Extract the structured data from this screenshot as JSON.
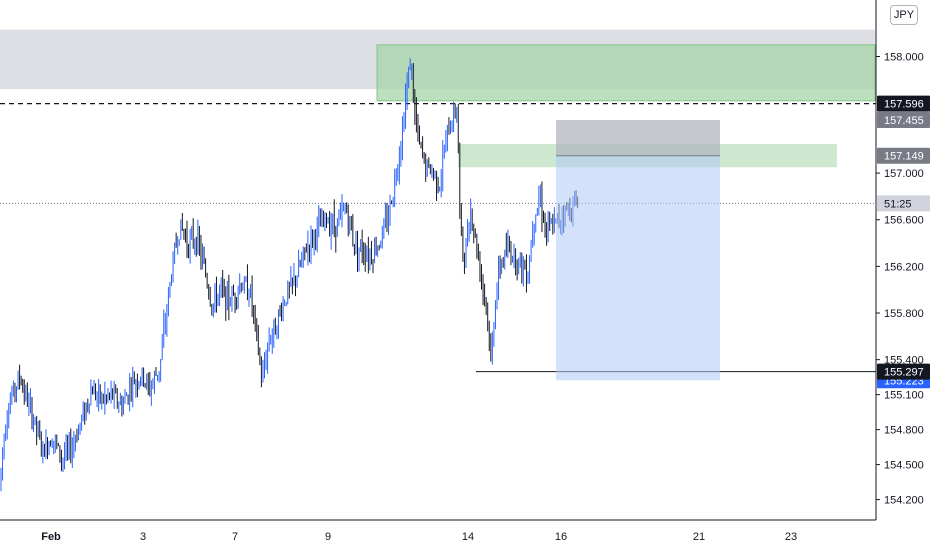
{
  "currency": "JPY",
  "chart_data": {
    "type": "candlestick",
    "title": "",
    "ylim": [
      154.05,
      158.4
    ],
    "y_ticks": [
      158.0,
      157.0,
      156.6,
      156.2,
      155.8,
      155.4,
      155.1,
      154.8,
      154.5,
      154.2
    ],
    "y_tick_labels": [
      "158.000",
      "157.000",
      "156.600",
      "156.200",
      "155.800",
      "155.400",
      "155.100",
      "154.800",
      "154.500",
      "154.200"
    ],
    "x_ticks": [
      "Feb",
      "3",
      "7",
      "9",
      "14",
      "16",
      "21",
      "23"
    ],
    "price_path": [
      [
        0,
        154.3
      ],
      [
        2,
        154.6
      ],
      [
        7,
        154.95
      ],
      [
        12,
        155.1
      ],
      [
        20,
        155.25
      ],
      [
        27,
        155.05
      ],
      [
        35,
        154.85
      ],
      [
        43,
        154.6
      ],
      [
        52,
        154.75
      ],
      [
        62,
        154.55
      ],
      [
        72,
        154.65
      ],
      [
        82,
        154.9
      ],
      [
        92,
        155.15
      ],
      [
        102,
        155.05
      ],
      [
        112,
        155.1
      ],
      [
        122,
        155.0
      ],
      [
        132,
        155.2
      ],
      [
        142,
        155.25
      ],
      [
        150,
        155.15
      ],
      [
        160,
        155.35
      ],
      [
        167,
        155.85
      ],
      [
        174,
        156.3
      ],
      [
        180,
        156.55
      ],
      [
        188,
        156.4
      ],
      [
        196,
        156.45
      ],
      [
        204,
        156.2
      ],
      [
        212,
        155.85
      ],
      [
        220,
        156.0
      ],
      [
        230,
        155.9
      ],
      [
        240,
        156.05
      ],
      [
        250,
        156.0
      ],
      [
        258,
        155.5
      ],
      [
        262,
        155.2
      ],
      [
        268,
        155.55
      ],
      [
        276,
        155.7
      ],
      [
        286,
        155.95
      ],
      [
        296,
        156.1
      ],
      [
        306,
        156.35
      ],
      [
        316,
        156.5
      ],
      [
        326,
        156.6
      ],
      [
        336,
        156.55
      ],
      [
        346,
        156.7
      ],
      [
        354,
        156.4
      ],
      [
        362,
        156.35
      ],
      [
        372,
        156.3
      ],
      [
        382,
        156.45
      ],
      [
        390,
        156.7
      ],
      [
        396,
        157.0
      ],
      [
        402,
        157.35
      ],
      [
        407,
        157.75
      ],
      [
        411,
        158.0
      ],
      [
        414,
        157.55
      ],
      [
        419,
        157.25
      ],
      [
        426,
        157.05
      ],
      [
        434,
        157.0
      ],
      [
        440,
        156.9
      ],
      [
        446,
        157.3
      ],
      [
        452,
        157.45
      ],
      [
        457,
        157.6
      ],
      [
        460,
        156.6
      ],
      [
        464,
        156.2
      ],
      [
        470,
        156.7
      ],
      [
        476,
        156.4
      ],
      [
        482,
        156.1
      ],
      [
        487,
        155.8
      ],
      [
        491,
        155.35
      ],
      [
        495,
        155.9
      ],
      [
        500,
        156.2
      ],
      [
        508,
        156.35
      ],
      [
        518,
        156.25
      ],
      [
        528,
        156.15
      ],
      [
        534,
        156.65
      ],
      [
        540,
        156.8
      ],
      [
        546,
        156.5
      ],
      [
        554,
        156.55
      ],
      [
        562,
        156.65
      ],
      [
        570,
        156.7
      ],
      [
        578,
        156.75
      ]
    ],
    "zones": [
      {
        "name": "upper-gray-zone",
        "y1": 157.72,
        "y2": 158.23,
        "x_from": 0,
        "x_to": 875,
        "color": "#d1d4dc",
        "opacity": 0.75
      },
      {
        "name": "supply-zone-high",
        "y1": 157.62,
        "y2": 158.1,
        "x_from": 377,
        "x_to": 875,
        "color": "#a5d6a7",
        "opacity": 0.75
      },
      {
        "name": "supply-zone-low",
        "y1": 157.05,
        "y2": 157.25,
        "x_from": 458,
        "x_to": 837,
        "color": "#a5d6a7",
        "opacity": 0.55
      }
    ],
    "position": {
      "x_from": 556,
      "x_to": 720,
      "stop": 157.455,
      "entry": 157.149,
      "target": 155.223,
      "stop_color": "#b2b5be",
      "target_color": "#aec8f7"
    },
    "levels": [
      {
        "name": "dashed-level",
        "value": 157.596,
        "style": "dashed",
        "color": "#131722"
      },
      {
        "name": "current-price-dotted",
        "value": 156.74,
        "style": "dotted",
        "color": "#787b86"
      },
      {
        "name": "low-line",
        "value": 155.297,
        "style": "solid",
        "color": "#131722",
        "x_from": 476
      }
    ],
    "price_tags": [
      {
        "name": "tag-157596",
        "value": 157.596,
        "label": "157.596",
        "bg": "#131722",
        "fg": "#ffffff"
      },
      {
        "name": "tag-157455",
        "value": 157.455,
        "label": "157.455",
        "bg": "#787b86",
        "fg": "#ffffff"
      },
      {
        "name": "tag-157149",
        "value": 157.149,
        "label": "157.149",
        "bg": "#787b86",
        "fg": "#ffffff"
      },
      {
        "name": "tag-countdown",
        "value": 156.74,
        "label": "51:25",
        "bg": "#d1d4dc",
        "fg": "#131722"
      },
      {
        "name": "tag-155223",
        "value": 155.223,
        "label": "155.223",
        "bg": "#2962ff",
        "fg": "#ffffff"
      },
      {
        "name": "tag-155297",
        "value": 155.297,
        "label": "155.297",
        "bg": "#131722",
        "fg": "#ffffff"
      }
    ],
    "colors": {
      "bull": "#2962ff",
      "bear": "#131722",
      "axis": "#131722",
      "grid": "#ffffff"
    }
  }
}
